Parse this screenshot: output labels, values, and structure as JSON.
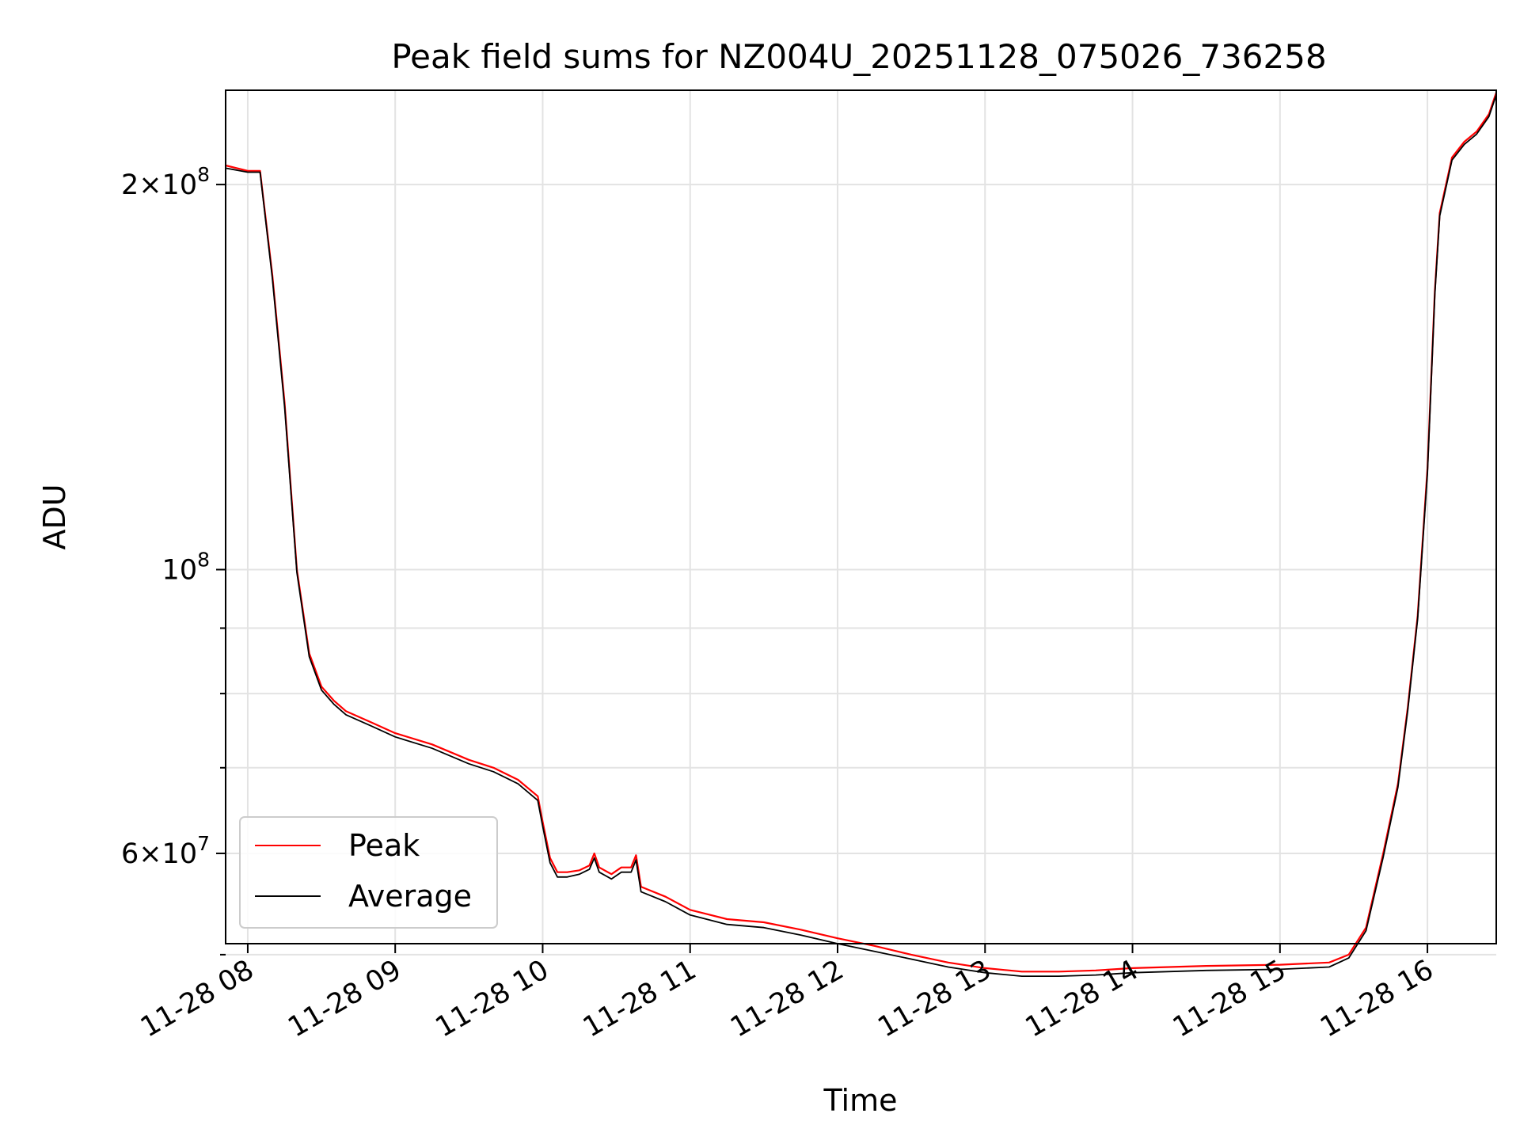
{
  "chart_data": {
    "type": "line",
    "title": "Peak field sums for NZ004U_20251128_075026_736258",
    "xlabel": "Time",
    "ylabel": "ADU",
    "yscale": "log",
    "xlim": [
      "2025-11-28 07:51",
      "2025-11-28 16:28"
    ],
    "ylim": [
      51000000,
      237000000
    ],
    "xticks": [
      {
        "value": "2025-11-28 08:00",
        "label": "11-28 08"
      },
      {
        "value": "2025-11-28 09:00",
        "label": "11-28 09"
      },
      {
        "value": "2025-11-28 10:00",
        "label": "11-28 10"
      },
      {
        "value": "2025-11-28 11:00",
        "label": "11-28 11"
      },
      {
        "value": "2025-11-28 12:00",
        "label": "11-28 12"
      },
      {
        "value": "2025-11-28 13:00",
        "label": "11-28 13"
      },
      {
        "value": "2025-11-28 14:00",
        "label": "11-28 14"
      },
      {
        "value": "2025-11-28 15:00",
        "label": "11-28 15"
      },
      {
        "value": "2025-11-28 16:00",
        "label": "11-28 16"
      }
    ],
    "yticks_major": [
      {
        "value": 60000000,
        "mantissa": "6",
        "exponent": "7"
      },
      {
        "value": 100000000,
        "mantissa": "",
        "exponent": "8"
      },
      {
        "value": 200000000,
        "mantissa": "2",
        "exponent": "8"
      }
    ],
    "yticks_minor": [
      50000000,
      70000000,
      80000000,
      90000000
    ],
    "grid": true,
    "legend_position": "lower-left",
    "series": [
      {
        "name": "Peak",
        "color": "#ff0000",
        "x": [
          "2025-11-28 07:51",
          "2025-11-28 08:00",
          "2025-11-28 08:05",
          "2025-11-28 08:10",
          "2025-11-28 08:15",
          "2025-11-28 08:20",
          "2025-11-28 08:25",
          "2025-11-28 08:30",
          "2025-11-28 08:35",
          "2025-11-28 08:40",
          "2025-11-28 08:50",
          "2025-11-28 09:00",
          "2025-11-28 09:15",
          "2025-11-28 09:30",
          "2025-11-28 09:40",
          "2025-11-28 09:50",
          "2025-11-28 09:58",
          "2025-11-28 10:00",
          "2025-11-28 10:03",
          "2025-11-28 10:06",
          "2025-11-28 10:10",
          "2025-11-28 10:15",
          "2025-11-28 10:19",
          "2025-11-28 10:21",
          "2025-11-28 10:23",
          "2025-11-28 10:28",
          "2025-11-28 10:32",
          "2025-11-28 10:36",
          "2025-11-28 10:38",
          "2025-11-28 10:40",
          "2025-11-28 10:42",
          "2025-11-28 10:50",
          "2025-11-28 11:00",
          "2025-11-28 11:15",
          "2025-11-28 11:30",
          "2025-11-28 11:45",
          "2025-11-28 12:00",
          "2025-11-28 12:15",
          "2025-11-28 12:30",
          "2025-11-28 12:45",
          "2025-11-28 13:00",
          "2025-11-28 13:15",
          "2025-11-28 13:30",
          "2025-11-28 13:45",
          "2025-11-28 14:00",
          "2025-11-28 14:30",
          "2025-11-28 15:00",
          "2025-11-28 15:20",
          "2025-11-28 15:28",
          "2025-11-28 15:35",
          "2025-11-28 15:42",
          "2025-11-28 15:48",
          "2025-11-28 15:52",
          "2025-11-28 15:56",
          "2025-11-28 16:00",
          "2025-11-28 16:03",
          "2025-11-28 16:05",
          "2025-11-28 16:10",
          "2025-11-28 16:15",
          "2025-11-28 16:20",
          "2025-11-28 16:25",
          "2025-11-28 16:28"
        ],
        "y": [
          207000000,
          205000000,
          205000000,
          170000000,
          135000000,
          100000000,
          86000000,
          81000000,
          79000000,
          77500000,
          76000000,
          74500000,
          73000000,
          71000000,
          70000000,
          68500000,
          66500000,
          63500000,
          59500000,
          58000000,
          58000000,
          58200000,
          58700000,
          60000000,
          58500000,
          57800000,
          58500000,
          58500000,
          59800000,
          56500000,
          56300000,
          55500000,
          54200000,
          53300000,
          53000000,
          52300000,
          51500000,
          50800000,
          50000000,
          49300000,
          48800000,
          48500000,
          48500000,
          48600000,
          48800000,
          49000000,
          49100000,
          49300000,
          50000000,
          52500000,
          60000000,
          68000000,
          78000000,
          92000000,
          120000000,
          165000000,
          190000000,
          210000000,
          216000000,
          220000000,
          227000000,
          236000000
        ]
      },
      {
        "name": "Average",
        "color": "#000000",
        "x": [
          "2025-11-28 07:51",
          "2025-11-28 08:00",
          "2025-11-28 08:05",
          "2025-11-28 08:10",
          "2025-11-28 08:15",
          "2025-11-28 08:20",
          "2025-11-28 08:25",
          "2025-11-28 08:30",
          "2025-11-28 08:35",
          "2025-11-28 08:40",
          "2025-11-28 08:50",
          "2025-11-28 09:00",
          "2025-11-28 09:15",
          "2025-11-28 09:30",
          "2025-11-28 09:40",
          "2025-11-28 09:50",
          "2025-11-28 09:58",
          "2025-11-28 10:00",
          "2025-11-28 10:03",
          "2025-11-28 10:06",
          "2025-11-28 10:10",
          "2025-11-28 10:15",
          "2025-11-28 10:19",
          "2025-11-28 10:21",
          "2025-11-28 10:23",
          "2025-11-28 10:28",
          "2025-11-28 10:32",
          "2025-11-28 10:36",
          "2025-11-28 10:38",
          "2025-11-28 10:40",
          "2025-11-28 10:42",
          "2025-11-28 10:50",
          "2025-11-28 11:00",
          "2025-11-28 11:15",
          "2025-11-28 11:30",
          "2025-11-28 11:45",
          "2025-11-28 12:00",
          "2025-11-28 12:15",
          "2025-11-28 12:30",
          "2025-11-28 12:45",
          "2025-11-28 13:00",
          "2025-11-28 13:15",
          "2025-11-28 13:30",
          "2025-11-28 13:45",
          "2025-11-28 14:00",
          "2025-11-28 14:30",
          "2025-11-28 15:00",
          "2025-11-28 15:20",
          "2025-11-28 15:28",
          "2025-11-28 15:35",
          "2025-11-28 15:42",
          "2025-11-28 15:48",
          "2025-11-28 15:52",
          "2025-11-28 15:56",
          "2025-11-28 16:00",
          "2025-11-28 16:03",
          "2025-11-28 16:05",
          "2025-11-28 16:10",
          "2025-11-28 16:15",
          "2025-11-28 16:20",
          "2025-11-28 16:25",
          "2025-11-28 16:28"
        ],
        "y": [
          206000000,
          204500000,
          204500000,
          169000000,
          134000000,
          99500000,
          85500000,
          80500000,
          78500000,
          77000000,
          75500000,
          74000000,
          72500000,
          70500000,
          69500000,
          68000000,
          66000000,
          63000000,
          59000000,
          57500000,
          57500000,
          57800000,
          58300000,
          59500000,
          58000000,
          57300000,
          58000000,
          58000000,
          59300000,
          56000000,
          55800000,
          55000000,
          53700000,
          52800000,
          52500000,
          51800000,
          51000000,
          50300000,
          49600000,
          48900000,
          48400000,
          48100000,
          48100000,
          48200000,
          48400000,
          48600000,
          48700000,
          48900000,
          49700000,
          52200000,
          59600000,
          67600000,
          77600000,
          91500000,
          119000000,
          164000000,
          189000000,
          209000000,
          215000000,
          219000000,
          226000000,
          235000000
        ]
      }
    ]
  }
}
